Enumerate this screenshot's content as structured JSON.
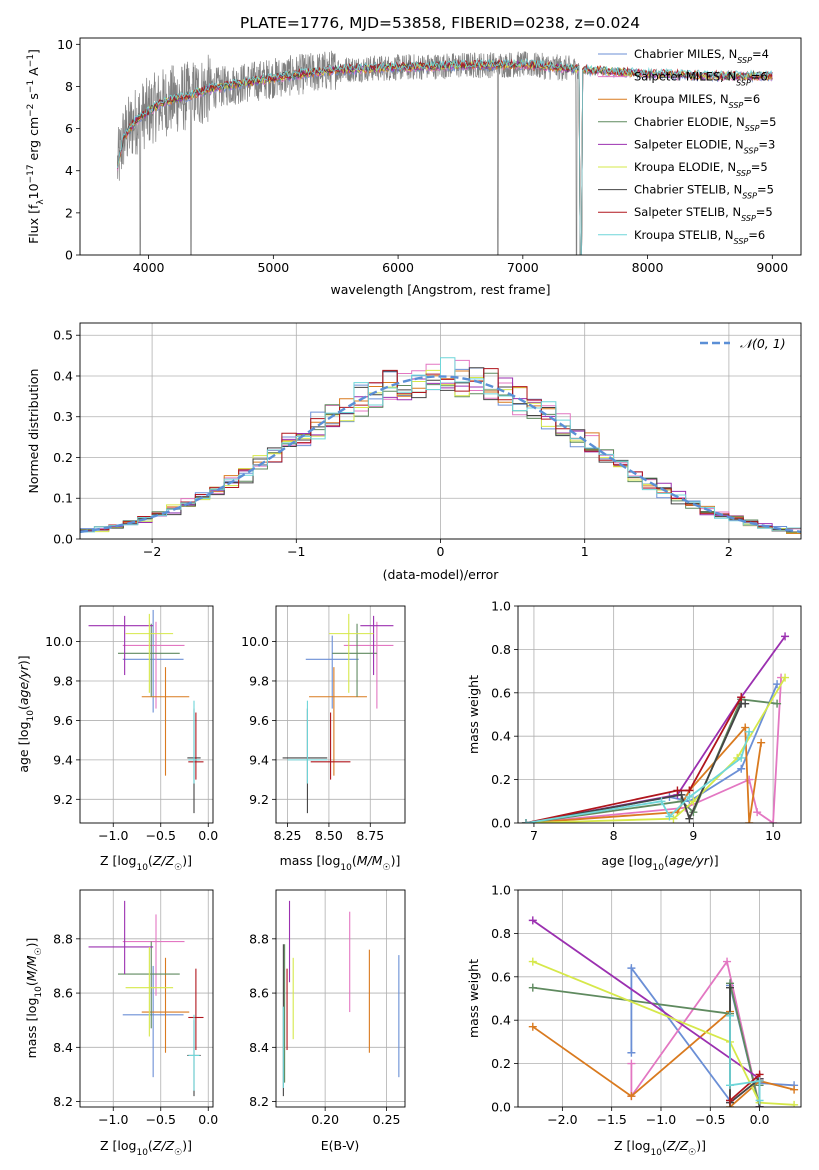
{
  "title": "PLATE=1776, MJD=53858, FIBERID=0238, z=0.024",
  "legend_entries": [
    {
      "label": "Chabrier MILES, N",
      "sub": "SSP",
      "tail": "=4",
      "color": "#6b8fd6"
    },
    {
      "label": "Salpeter MILES, N",
      "sub": "SSP",
      "tail": "=6",
      "color": "#e377c2"
    },
    {
      "label": "Kroupa MILES, N",
      "sub": "SSP",
      "tail": "=6",
      "color": "#d97a1f"
    },
    {
      "label": "Chabrier ELODIE, N",
      "sub": "SSP",
      "tail": "=5",
      "color": "#5f8a5f"
    },
    {
      "label": "Salpeter ELODIE, N",
      "sub": "SSP",
      "tail": "=3",
      "color": "#9b30b0"
    },
    {
      "label": "Kroupa ELODIE, N",
      "sub": "SSP",
      "tail": "=5",
      "color": "#d6e84a"
    },
    {
      "label": "Chabrier STELIB, N",
      "sub": "SSP",
      "tail": "=5",
      "color": "#444444"
    },
    {
      "label": "Salpeter STELIB, N",
      "sub": "SSP",
      "tail": "=5",
      "color": "#b0161d"
    },
    {
      "label": "Kroupa STELIB, N",
      "sub": "SSP",
      "tail": "=6",
      "color": "#6fd6d9"
    }
  ],
  "data_color": "#808080",
  "chart_data": [
    {
      "type": "line",
      "panel": "spectrum",
      "xlabel": "wavelength [Angstrom, rest frame]",
      "ylabel": "Flux [f_λ 10^-17 erg cm^-2 s^-1 A^-1]",
      "xlim": [
        3450,
        9230
      ],
      "ylim": [
        0,
        10.3
      ],
      "xticks": [
        4000,
        5000,
        6000,
        7000,
        8000,
        9000
      ],
      "yticks": [
        0,
        2,
        4,
        6,
        8,
        10
      ],
      "x_range_data": [
        3750,
        7450
      ],
      "x_range_model": [
        3750,
        9000
      ],
      "continuum": {
        "x": [
          3750,
          3800,
          3900,
          4000,
          4100,
          4200,
          4300,
          4500,
          4700,
          5000,
          5500,
          6000,
          6500,
          7000,
          7450,
          8000,
          8500,
          9000
        ],
        "y": [
          4.2,
          5.6,
          6.4,
          6.8,
          7.2,
          7.4,
          7.5,
          7.9,
          8.1,
          8.4,
          8.8,
          8.9,
          9.0,
          9.05,
          8.8,
          8.6,
          8.5,
          8.5
        ]
      },
      "absorption_dips": [
        {
          "x": 3933,
          "y": 0.0
        },
        {
          "x": 4340,
          "y": 0.0
        },
        {
          "x": 6800,
          "y": 0.0
        },
        {
          "x": 7430,
          "y": 0.0
        }
      ],
      "grid": false,
      "legend": "top-right"
    },
    {
      "type": "histogram",
      "panel": "residuals",
      "xlabel": "(data-model)/error",
      "ylabel": "Normed distribution",
      "xlim": [
        -2.5,
        2.5
      ],
      "ylim": [
        0,
        0.53
      ],
      "xticks": [
        -2,
        -1,
        0,
        1,
        2
      ],
      "yticks": [
        0.0,
        0.1,
        0.2,
        0.3,
        0.4,
        0.5
      ],
      "bin_width": 0.1,
      "gaussian": {
        "label": "𝒩(0, 1)",
        "mean": 0,
        "sigma": 1,
        "color": "#5b8fd6"
      },
      "grid": true,
      "legend": "top-right"
    },
    {
      "type": "scatter",
      "panel": "age-vs-Z",
      "xlabel": "Z [log10(Z/Z☉)]",
      "ylabel": "age [log10(age/yr)]",
      "xlim": [
        -1.35,
        0.05
      ],
      "ylim": [
        9.08,
        10.18
      ],
      "xticks": [
        -1.0,
        -0.5,
        0.0
      ],
      "yticks": [
        9.2,
        9.4,
        9.6,
        9.8,
        10.0
      ],
      "points": [
        {
          "x": -0.58,
          "y": 9.91,
          "xerr": [
            0.32,
            0.32
          ],
          "yerr": [
            0.27,
            0.25
          ],
          "color": 0
        },
        {
          "x": -0.55,
          "y": 9.98,
          "xerr": [
            0.35,
            0.3
          ],
          "yerr": [
            0.32,
            0.12
          ],
          "color": 1
        },
        {
          "x": -0.45,
          "y": 9.72,
          "xerr": [
            0.25,
            0.25
          ],
          "yerr": [
            0.4,
            0.15
          ],
          "color": 2
        },
        {
          "x": -0.6,
          "y": 9.94,
          "xerr": [
            0.35,
            0.3
          ],
          "yerr": [
            0.22,
            0.15
          ],
          "color": 3
        },
        {
          "x": -0.88,
          "y": 10.08,
          "xerr": [
            0.38,
            0.3
          ],
          "yerr": [
            0.25,
            0.05
          ],
          "color": 4
        },
        {
          "x": -0.62,
          "y": 10.04,
          "xerr": [
            0.25,
            0.25
          ],
          "yerr": [
            0.3,
            0.1
          ],
          "color": 5
        },
        {
          "x": -0.15,
          "y": 9.41,
          "xerr": [
            0.07,
            0.07
          ],
          "yerr": [
            0.28,
            0.25
          ],
          "color": 6
        },
        {
          "x": -0.13,
          "y": 9.39,
          "xerr": [
            0.08,
            0.08
          ],
          "yerr": [
            0.09,
            0.25
          ],
          "color": 7
        },
        {
          "x": -0.15,
          "y": 9.4,
          "xerr": [
            0.06,
            0.06
          ],
          "yerr": [
            0.12,
            0.3
          ],
          "color": 8
        }
      ],
      "grid": true
    },
    {
      "type": "scatter",
      "panel": "age-vs-mass",
      "xlabel": "mass [log10(M/M☉)]",
      "ylabel": "",
      "xlim": [
        8.18,
        8.96
      ],
      "ylim": [
        9.08,
        10.18
      ],
      "xticks": [
        8.25,
        8.5,
        8.75
      ],
      "yticks": [
        9.2,
        9.4,
        9.6,
        9.8,
        10.0
      ],
      "points": [
        {
          "x": 8.52,
          "y": 9.91,
          "xerr": [
            0.16,
            0.16
          ],
          "yerr": [
            0.25,
            0.12
          ],
          "color": 0
        },
        {
          "x": 8.79,
          "y": 9.98,
          "xerr": [
            0.2,
            0.1
          ],
          "yerr": [
            0.32,
            0.12
          ],
          "color": 1
        },
        {
          "x": 8.53,
          "y": 9.72,
          "xerr": [
            0.15,
            0.2
          ],
          "yerr": [
            0.4,
            0.15
          ],
          "color": 2
        },
        {
          "x": 8.67,
          "y": 9.94,
          "xerr": [
            0.15,
            0.12
          ],
          "yerr": [
            0.22,
            0.15
          ],
          "color": 3
        },
        {
          "x": 8.77,
          "y": 10.08,
          "xerr": [
            0.08,
            0.12
          ],
          "yerr": [
            0.25,
            0.05
          ],
          "color": 4
        },
        {
          "x": 8.62,
          "y": 10.04,
          "xerr": [
            0.12,
            0.15
          ],
          "yerr": [
            0.3,
            0.1
          ],
          "color": 5
        },
        {
          "x": 8.37,
          "y": 9.41,
          "xerr": [
            0.15,
            0.12
          ],
          "yerr": [
            0.28,
            0.25
          ],
          "color": 6
        },
        {
          "x": 8.51,
          "y": 9.39,
          "xerr": [
            0.12,
            0.12
          ],
          "yerr": [
            0.09,
            0.25
          ],
          "color": 7
        },
        {
          "x": 8.37,
          "y": 9.4,
          "xerr": [
            0.12,
            0.12
          ],
          "yerr": [
            0.12,
            0.3
          ],
          "color": 8
        }
      ],
      "grid": true
    },
    {
      "type": "line",
      "panel": "mass-weight-vs-age",
      "xlabel": "age [log10(age/yr)]",
      "ylabel": "mass weight",
      "xlim": [
        6.8,
        10.35
      ],
      "ylim": [
        0,
        1.0
      ],
      "xticks": [
        7,
        8,
        9,
        10
      ],
      "yticks": [
        0.0,
        0.2,
        0.4,
        0.6,
        0.8,
        1.0
      ],
      "series": [
        {
          "color": 0,
          "x": [
            6.9,
            8.7,
            8.95,
            9.6,
            10.05
          ],
          "y": [
            0.0,
            0.12,
            0.1,
            0.25,
            0.64
          ]
        },
        {
          "color": 1,
          "x": [
            6.9,
            8.9,
            9.7,
            9.8,
            10.0,
            10.1
          ],
          "y": [
            0.0,
            0.07,
            0.2,
            0.05,
            0.0,
            0.67
          ]
        },
        {
          "color": 2,
          "x": [
            6.9,
            8.8,
            8.95,
            9.65,
            9.7,
            9.85
          ],
          "y": [
            0.0,
            0.05,
            0.15,
            0.44,
            0.0,
            0.37
          ]
        },
        {
          "color": 3,
          "x": [
            6.9,
            8.85,
            9.0,
            9.6,
            10.05
          ],
          "y": [
            0.0,
            0.1,
            0.05,
            0.57,
            0.55
          ]
        },
        {
          "color": 4,
          "x": [
            6.9,
            8.8,
            9.6,
            10.15
          ],
          "y": [
            0.0,
            0.13,
            0.58,
            0.86
          ]
        },
        {
          "color": 5,
          "x": [
            6.9,
            8.75,
            9.0,
            9.55,
            10.15
          ],
          "y": [
            0.0,
            0.02,
            0.1,
            0.3,
            0.67
          ]
        },
        {
          "color": 6,
          "x": [
            6.9,
            8.85,
            8.95,
            9.6,
            9.65
          ],
          "y": [
            0.0,
            0.13,
            0.02,
            0.55,
            0.55
          ]
        },
        {
          "color": 7,
          "x": [
            6.9,
            8.8,
            8.95,
            9.6
          ],
          "y": [
            0.0,
            0.15,
            0.15,
            0.58
          ]
        },
        {
          "color": 8,
          "x": [
            6.9,
            8.6,
            8.7,
            8.95,
            9.6,
            9.7
          ],
          "y": [
            0.0,
            0.1,
            0.03,
            0.12,
            0.3,
            0.42
          ]
        }
      ],
      "grid": true
    },
    {
      "type": "scatter",
      "panel": "mass-vs-Z",
      "xlabel": "Z [log10(Z/Z☉)]",
      "ylabel": "mass [log10(M/M☉)]",
      "xlim": [
        -1.35,
        0.05
      ],
      "ylim": [
        8.18,
        8.98
      ],
      "xticks": [
        -1.0,
        -0.5,
        0.0
      ],
      "yticks": [
        8.2,
        8.4,
        8.6,
        8.8
      ],
      "points": [
        {
          "x": -0.58,
          "y": 8.52,
          "xerr": [
            0.32,
            0.32
          ],
          "yerr": [
            0.23,
            0.18
          ],
          "color": 0
        },
        {
          "x": -0.55,
          "y": 8.79,
          "xerr": [
            0.35,
            0.3
          ],
          "yerr": [
            0.2,
            0.1
          ],
          "color": 1
        },
        {
          "x": -0.45,
          "y": 8.53,
          "xerr": [
            0.25,
            0.25
          ],
          "yerr": [
            0.15,
            0.2
          ],
          "color": 2
        },
        {
          "x": -0.6,
          "y": 8.67,
          "xerr": [
            0.35,
            0.3
          ],
          "yerr": [
            0.2,
            0.12
          ],
          "color": 3
        },
        {
          "x": -0.88,
          "y": 8.77,
          "xerr": [
            0.38,
            0.3
          ],
          "yerr": [
            0.1,
            0.17
          ],
          "color": 4
        },
        {
          "x": -0.62,
          "y": 8.62,
          "xerr": [
            0.25,
            0.25
          ],
          "yerr": [
            0.18,
            0.15
          ],
          "color": 5
        },
        {
          "x": -0.15,
          "y": 8.37,
          "xerr": [
            0.07,
            0.07
          ],
          "yerr": [
            0.15,
            0.13
          ],
          "color": 6
        },
        {
          "x": -0.13,
          "y": 8.51,
          "xerr": [
            0.08,
            0.08
          ],
          "yerr": [
            0.12,
            0.18
          ],
          "color": 7
        },
        {
          "x": -0.15,
          "y": 8.37,
          "xerr": [
            0.06,
            0.06
          ],
          "yerr": [
            0.13,
            0.15
          ],
          "color": 8
        }
      ],
      "grid": true
    },
    {
      "type": "scatter",
      "panel": "mass-vs-ebv",
      "xlabel": "E(B-V)",
      "ylabel": "",
      "xlim": [
        0.16,
        0.265
      ],
      "ylim": [
        8.18,
        8.98
      ],
      "xticks": [
        0.2,
        0.25
      ],
      "yticks": [
        8.2,
        8.4,
        8.6,
        8.8
      ],
      "points": [
        {
          "x": 0.26,
          "y": 8.52,
          "yerr": [
            0.23,
            0.22
          ],
          "color": 0
        },
        {
          "x": 0.22,
          "y": 8.7,
          "yerr": [
            0.17,
            0.2
          ],
          "color": 1
        },
        {
          "x": 0.236,
          "y": 8.57,
          "yerr": [
            0.19,
            0.19
          ],
          "color": 2
        },
        {
          "x": 0.167,
          "y": 8.52,
          "yerr": [
            0.25,
            0.26
          ],
          "color": 3
        },
        {
          "x": 0.171,
          "y": 8.74,
          "yerr": [
            0.1,
            0.2
          ],
          "color": 4
        },
        {
          "x": 0.174,
          "y": 8.58,
          "yerr": [
            0.15,
            0.15
          ],
          "color": 5
        },
        {
          "x": 0.166,
          "y": 8.5,
          "yerr": [
            0.28,
            0.28
          ],
          "color": 6
        },
        {
          "x": 0.169,
          "y": 8.54,
          "yerr": [
            0.15,
            0.15
          ],
          "color": 7
        },
        {
          "x": 0.166,
          "y": 8.4,
          "yerr": [
            0.15,
            0.15
          ],
          "color": 8
        }
      ],
      "grid": true
    },
    {
      "type": "line",
      "panel": "mass-weight-vs-Z",
      "xlabel": "Z [log10(Z/Z☉)]",
      "ylabel": "mass weight",
      "xlim": [
        -2.45,
        0.42
      ],
      "ylim": [
        0,
        1.0
      ],
      "xticks": [
        -2.0,
        -1.5,
        -1.0,
        -0.5,
        0.0
      ],
      "yticks": [
        0.0,
        0.2,
        0.4,
        0.6,
        0.8,
        1.0
      ],
      "series": [
        {
          "color": 0,
          "x": [
            -1.3,
            -1.3,
            -0.3,
            -0.3,
            0.0,
            0.0,
            0.35
          ],
          "y": [
            0.25,
            0.64,
            0.03,
            0.56,
            0.0,
            0.11,
            0.1
          ]
        },
        {
          "color": 1,
          "x": [
            -1.3,
            -1.3,
            -0.33,
            0.0,
            0.0
          ],
          "y": [
            0.2,
            0.05,
            0.67,
            0.0,
            0.13
          ]
        },
        {
          "color": 2,
          "x": [
            -2.3,
            -1.3,
            -0.3,
            -0.3,
            0.0,
            0.35
          ],
          "y": [
            0.37,
            0.05,
            0.44,
            0.0,
            0.12,
            0.08
          ]
        },
        {
          "color": 3,
          "x": [
            -2.3,
            -0.3,
            -0.3,
            0.0,
            0.0
          ],
          "y": [
            0.55,
            0.43,
            0.57,
            0.0,
            0.1
          ]
        },
        {
          "color": 4,
          "x": [
            -2.3,
            0.0,
            0.0
          ],
          "y": [
            0.86,
            0.13,
            0.0
          ]
        },
        {
          "color": 5,
          "x": [
            -2.3,
            -0.3,
            0.0,
            0.35
          ],
          "y": [
            0.67,
            0.3,
            0.02,
            0.01
          ]
        },
        {
          "color": 6,
          "x": [
            -0.3,
            -0.3,
            0.0,
            0.0
          ],
          "y": [
            0.55,
            0.02,
            0.13,
            0.0
          ]
        },
        {
          "color": 7,
          "x": [
            -0.3,
            0.0,
            0.0
          ],
          "y": [
            0.03,
            0.15,
            0.12
          ]
        },
        {
          "color": 8,
          "x": [
            -0.3,
            -0.3,
            0.0,
            0.0
          ],
          "y": [
            0.42,
            0.1,
            0.12,
            0.03
          ]
        }
      ],
      "grid": true
    }
  ]
}
